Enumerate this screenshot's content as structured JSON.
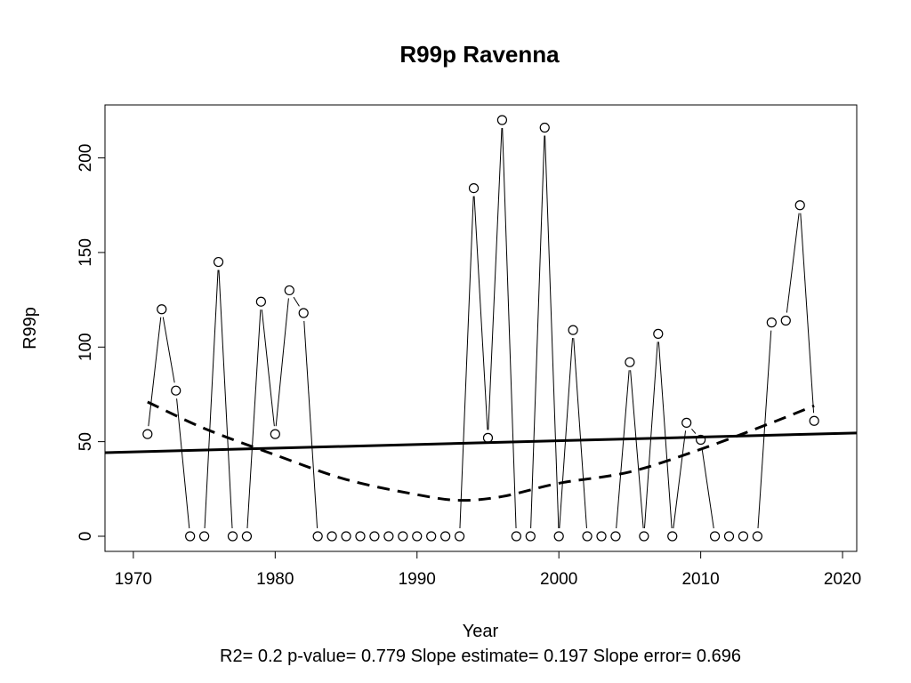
{
  "chart_data": {
    "type": "line",
    "title": "R99p   Ravenna",
    "xlabel": "Year",
    "ylabel": "R99p",
    "stats_line": "R2= 0.2  p-value= 0.779  Slope estimate= 0.197  Slope error= 0.696",
    "xlim": [
      1968,
      2021
    ],
    "ylim": [
      -8,
      228
    ],
    "x_ticks": [
      1970,
      1980,
      1990,
      2000,
      2010,
      2020
    ],
    "y_ticks": [
      0,
      50,
      100,
      150,
      200
    ],
    "grid": false,
    "series": [
      {
        "style": "points-and-lines",
        "x": [
          1971,
          1972,
          1973,
          1974,
          1975,
          1976,
          1977,
          1978,
          1979,
          1980,
          1981,
          1982,
          1983,
          1984,
          1985,
          1986,
          1987,
          1988,
          1989,
          1990,
          1991,
          1992,
          1993,
          1994,
          1995,
          1996,
          1997,
          1998,
          1999,
          2000,
          2001,
          2002,
          2003,
          2004,
          2005,
          2006,
          2007,
          2008,
          2009,
          2010,
          2011,
          2012,
          2013,
          2014,
          2015,
          2016,
          2017,
          2018
        ],
        "values": [
          54,
          120,
          77,
          0,
          0,
          145,
          0,
          0,
          124,
          54,
          130,
          118,
          0,
          0,
          0,
          0,
          0,
          0,
          0,
          0,
          0,
          0,
          0,
          184,
          52,
          220,
          0,
          0,
          216,
          0,
          109,
          0,
          0,
          0,
          92,
          0,
          107,
          0,
          60,
          51,
          0,
          0,
          0,
          0,
          113,
          114,
          175,
          61
        ]
      },
      {
        "style": "solid-trend",
        "x": [
          1968,
          2021
        ],
        "values": [
          44.2,
          54.6
        ]
      },
      {
        "style": "dashed-smooth",
        "x": [
          1971,
          1975,
          1980,
          1985,
          1990,
          1993,
          1996,
          2000,
          2005,
          2010,
          2015,
          2018
        ],
        "values": [
          71,
          57,
          43,
          30,
          22,
          19,
          21,
          28,
          34,
          46,
          60,
          69
        ]
      }
    ]
  }
}
